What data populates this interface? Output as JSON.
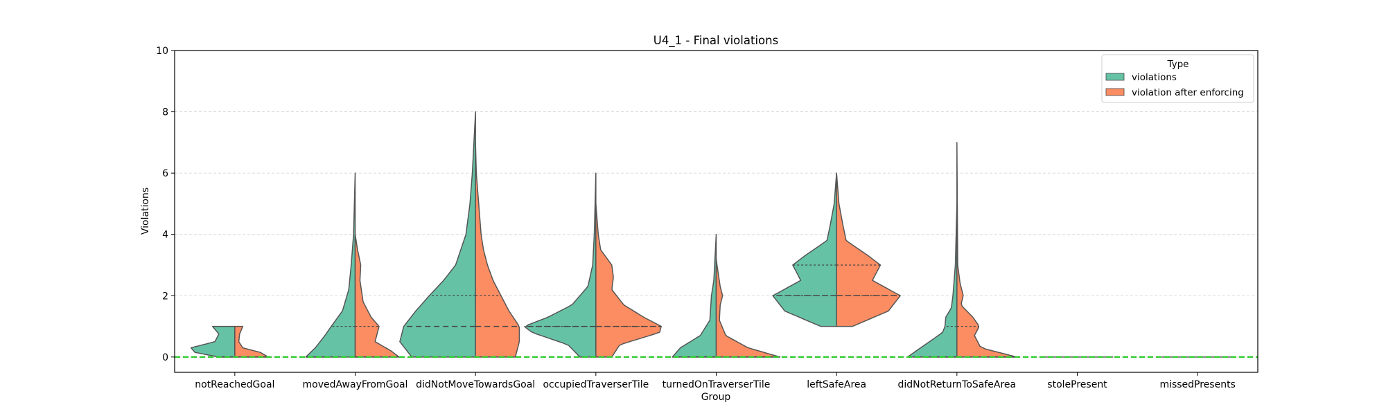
{
  "chart_data": {
    "type": "violin",
    "title": "U4_1 - Final violations",
    "xlabel": "Group",
    "ylabel": "Violations",
    "ylim": [
      -0.5,
      10
    ],
    "yticks": [
      0,
      2,
      4,
      6,
      8,
      10
    ],
    "grid": "horizontal dashed",
    "legend": {
      "title": "Type",
      "placement": "top-right",
      "entries": [
        {
          "label": "violations",
          "color": "#66c2a5"
        },
        {
          "label": "violation after enforcing",
          "color": "#fc8d62"
        }
      ]
    },
    "reference_line": {
      "y": 0,
      "color": "#33cc33",
      "style": "dashed"
    },
    "categories": [
      "notReachedGoal",
      "movedAwayFromGoal",
      "didNotMoveTowardsGoal",
      "occupiedTraverserTile",
      "turnedOnTraverserTile",
      "leftSafeArea",
      "didNotReturnToSafeArea",
      "stolePresent",
      "missedPresents"
    ],
    "series": [
      {
        "name": "violations",
        "color": "#66c2a5",
        "violins": [
          {
            "q1": 0,
            "median": 0,
            "q3": 0,
            "profile": [
              [
                0,
                0.2
              ],
              [
                0.15,
                0.5
              ],
              [
                0.3,
                0.55
              ],
              [
                0.5,
                0.25
              ],
              [
                0.75,
                0.2
              ],
              [
                1,
                0.28
              ]
            ]
          },
          {
            "q1": 0,
            "median": 0,
            "q3": 1,
            "profile": [
              [
                0,
                0.62
              ],
              [
                0.3,
                0.5
              ],
              [
                0.7,
                0.38
              ],
              [
                1,
                0.3
              ],
              [
                1.5,
                0.16
              ],
              [
                2.2,
                0.08
              ],
              [
                3,
                0.05
              ],
              [
                4,
                0.02
              ],
              [
                5,
                0.01
              ],
              [
                6,
                0
              ]
            ]
          },
          {
            "q1": 0,
            "median": 1,
            "q3": 2,
            "profile": [
              [
                0,
                0.8
              ],
              [
                0.5,
                0.95
              ],
              [
                1,
                0.9
              ],
              [
                1.5,
                0.75
              ],
              [
                2,
                0.58
              ],
              [
                2.5,
                0.4
              ],
              [
                3,
                0.25
              ],
              [
                4,
                0.12
              ],
              [
                5,
                0.07
              ],
              [
                6,
                0.04
              ],
              [
                7,
                0.02
              ],
              [
                8,
                0
              ]
            ]
          },
          {
            "q1": 0,
            "median": 1,
            "q3": 1,
            "profile": [
              [
                0,
                0.2
              ],
              [
                0.4,
                0.35
              ],
              [
                0.8,
                0.8
              ],
              [
                1,
                0.9
              ],
              [
                1.3,
                0.6
              ],
              [
                1.7,
                0.3
              ],
              [
                2,
                0.2
              ],
              [
                2.3,
                0.1
              ],
              [
                3,
                0.04
              ],
              [
                4,
                0.02
              ],
              [
                5,
                0.01
              ],
              [
                6,
                0
              ]
            ]
          },
          {
            "q1": 0,
            "median": 0,
            "q3": 0,
            "profile": [
              [
                0,
                0.55
              ],
              [
                0.3,
                0.45
              ],
              [
                0.7,
                0.2
              ],
              [
                1.2,
                0.08
              ],
              [
                2,
                0.06
              ],
              [
                2.5,
                0.03
              ],
              [
                3,
                0.02
              ],
              [
                4,
                0
              ]
            ]
          },
          {
            "q1": 2,
            "median": 2,
            "q3": 3,
            "profile": [
              [
                1,
                0.2
              ],
              [
                1.5,
                0.65
              ],
              [
                2,
                0.8
              ],
              [
                2.5,
                0.45
              ],
              [
                3,
                0.55
              ],
              [
                3.3,
                0.4
              ],
              [
                3.8,
                0.12
              ],
              [
                4.3,
                0.08
              ],
              [
                5,
                0.03
              ],
              [
                6,
                0
              ]
            ]
          },
          {
            "q1": 0,
            "median": 0,
            "q3": 1,
            "profile": [
              [
                0,
                0.62
              ],
              [
                0.4,
                0.4
              ],
              [
                0.8,
                0.18
              ],
              [
                1,
                0.15
              ],
              [
                1.3,
                0.14
              ],
              [
                1.6,
                0.07
              ],
              [
                2,
                0.05
              ],
              [
                3,
                0.02
              ],
              [
                4,
                0.01
              ],
              [
                5,
                0
              ]
            ]
          },
          {
            "q1": 0,
            "median": 0,
            "q3": 0,
            "profile": [
              [
                0,
                0.45
              ],
              [
                0.01,
                0.45
              ]
            ]
          },
          {
            "q1": 0,
            "median": 0,
            "q3": 0,
            "profile": [
              [
                0,
                0.45
              ],
              [
                0.01,
                0.45
              ]
            ]
          }
        ]
      },
      {
        "name": "violation after enforcing",
        "color": "#fc8d62",
        "violins": [
          {
            "q1": 0,
            "median": 0,
            "q3": 0,
            "profile": [
              [
                0,
                0.42
              ],
              [
                0.15,
                0.32
              ],
              [
                0.3,
                0.1
              ],
              [
                0.5,
                0.05
              ],
              [
                0.75,
                0.06
              ],
              [
                1,
                0.1
              ]
            ]
          },
          {
            "q1": 0,
            "median": 0,
            "q3": 1,
            "profile": [
              [
                0,
                0.55
              ],
              [
                0.2,
                0.45
              ],
              [
                0.5,
                0.25
              ],
              [
                0.8,
                0.28
              ],
              [
                1,
                0.3
              ],
              [
                1.3,
                0.2
              ],
              [
                1.8,
                0.1
              ],
              [
                2.5,
                0.06
              ],
              [
                3,
                0.07
              ],
              [
                3.5,
                0.03
              ],
              [
                4,
                0
              ]
            ]
          },
          {
            "q1": 0,
            "median": 1,
            "q3": 2,
            "profile": [
              [
                0,
                0.5
              ],
              [
                0.5,
                0.55
              ],
              [
                1,
                0.55
              ],
              [
                1.5,
                0.42
              ],
              [
                2,
                0.32
              ],
              [
                2.5,
                0.22
              ],
              [
                3,
                0.15
              ],
              [
                3.5,
                0.1
              ],
              [
                4,
                0.07
              ],
              [
                5,
                0.04
              ],
              [
                6,
                0.01
              ],
              [
                7,
                0
              ]
            ]
          },
          {
            "q1": 0,
            "median": 1,
            "q3": 1,
            "profile": [
              [
                0,
                0.2
              ],
              [
                0.4,
                0.3
              ],
              [
                0.8,
                0.8
              ],
              [
                1,
                0.82
              ],
              [
                1.3,
                0.6
              ],
              [
                1.7,
                0.35
              ],
              [
                2.2,
                0.2
              ],
              [
                2.6,
                0.22
              ],
              [
                3,
                0.2
              ],
              [
                3.5,
                0.06
              ],
              [
                4,
                0.03
              ],
              [
                5,
                0
              ]
            ]
          },
          {
            "q1": 0,
            "median": 0,
            "q3": 0,
            "profile": [
              [
                0,
                0.8
              ],
              [
                0.3,
                0.4
              ],
              [
                0.7,
                0.12
              ],
              [
                1.2,
                0.04
              ],
              [
                1.7,
                0.05
              ],
              [
                2,
                0.08
              ],
              [
                2.3,
                0.05
              ],
              [
                3,
                0.01
              ],
              [
                3.2,
                0
              ]
            ]
          },
          {
            "q1": 2,
            "median": 2,
            "q3": 3,
            "profile": [
              [
                1,
                0.2
              ],
              [
                1.5,
                0.65
              ],
              [
                2,
                0.8
              ],
              [
                2.5,
                0.45
              ],
              [
                3,
                0.55
              ],
              [
                3.3,
                0.4
              ],
              [
                3.8,
                0.12
              ],
              [
                4.3,
                0.08
              ],
              [
                5,
                0.03
              ],
              [
                6,
                0
              ]
            ]
          },
          {
            "q1": 0,
            "median": 0,
            "q3": 1,
            "profile": [
              [
                0,
                0.75
              ],
              [
                0.3,
                0.3
              ],
              [
                0.7,
                0.22
              ],
              [
                1,
                0.28
              ],
              [
                1.3,
                0.2
              ],
              [
                1.7,
                0.05
              ],
              [
                2,
                0.08
              ],
              [
                2.4,
                0.04
              ],
              [
                3,
                0.01
              ],
              [
                5,
                0.005
              ],
              [
                7,
                0
              ]
            ]
          },
          {
            "q1": 0,
            "median": 0,
            "q3": 0,
            "profile": [
              [
                0,
                0.45
              ],
              [
                0.01,
                0.45
              ]
            ]
          },
          {
            "q1": 0,
            "median": 0,
            "q3": 0,
            "profile": [
              [
                0,
                0.45
              ],
              [
                0.01,
                0.45
              ]
            ]
          }
        ]
      }
    ]
  }
}
